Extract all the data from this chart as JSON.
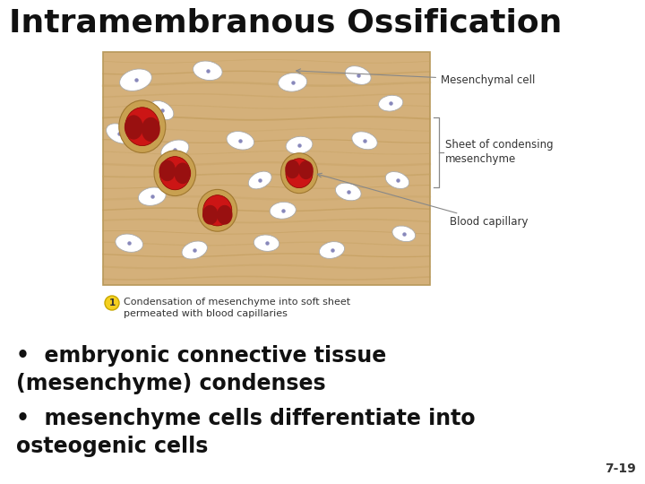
{
  "title": "Intramembranous Ossification",
  "title_fontsize": 26,
  "title_fontweight": "bold",
  "title_color": "#111111",
  "bg_color": "#ffffff",
  "bullet_points": [
    "embryonic connective tissue\n(mesenchyme) condenses",
    "mesenchyme cells differentiate into\nosteogenic cells"
  ],
  "bullet_fontsize": 17,
  "bullet_color": "#111111",
  "slide_number": "7-19",
  "slide_num_fontsize": 10,
  "label1": "Mesenchymal cell",
  "label2": "Sheet of condensing\nmesenchyme",
  "label3": "Blood capillary",
  "wood_base": "#d4b07a",
  "wood_grain1": "#c4a060",
  "wood_grain2": "#be9855",
  "capillary_outer": "#c8a050",
  "capillary_red": "#cc1515",
  "capillary_dark": "#991010",
  "spindle_face": "#ffffff",
  "spindle_edge": "#aaaaaa",
  "nucleus_color": "#8888bb",
  "caption_circle_face": "#f5d020",
  "caption_circle_edge": "#c8a800",
  "caption_text_color": "#333333",
  "label_text_color": "#333333",
  "arrow_color": "#888888"
}
